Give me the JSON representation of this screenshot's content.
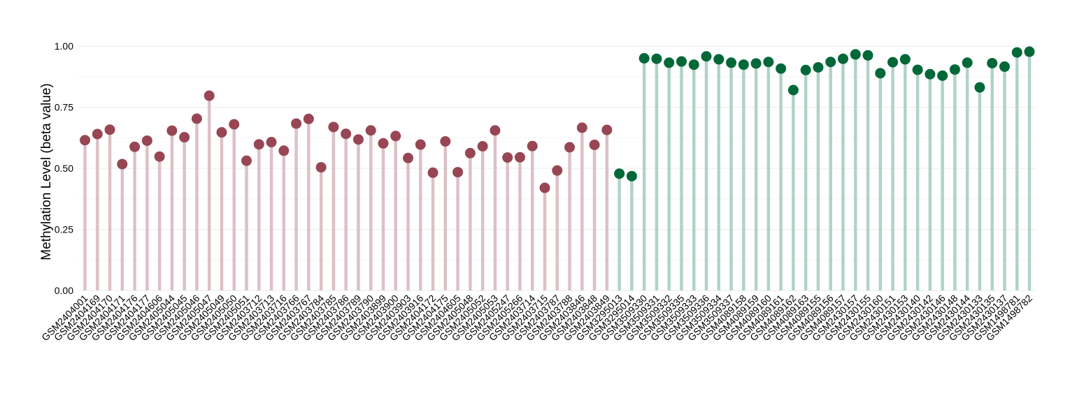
{
  "chart_data": {
    "type": "lollipop",
    "title": "",
    "xlabel": "",
    "ylabel": "Methylation Level (beta value)",
    "ylim": [
      0,
      1
    ],
    "yticks": [
      "0.00",
      "0.25",
      "0.50",
      "0.75",
      "1.00"
    ],
    "grid": true,
    "colors": {
      "group1_point": "#984654",
      "group1_stem": "#dcc1c6",
      "group2_point": "#016838",
      "group2_stem": "#b1d3c7"
    },
    "categories": [
      "GSM2404001",
      "GSM2404169",
      "GSM2404170",
      "GSM2404171",
      "GSM2404176",
      "GSM2404177",
      "GSM2404606",
      "GSM2405044",
      "GSM2405045",
      "GSM2405046",
      "GSM2405047",
      "GSM2405049",
      "GSM2405050",
      "GSM2405051",
      "GSM2403712",
      "GSM2403713",
      "GSM2403716",
      "GSM2403766",
      "GSM2403767",
      "GSM2403784",
      "GSM2403785",
      "GSM2403786",
      "GSM2403789",
      "GSM2403790",
      "GSM2403899",
      "GSM2403900",
      "GSM2403903",
      "GSM2403916",
      "GSM2404172",
      "GSM2404175",
      "GSM2404605",
      "GSM2405048",
      "GSM2405052",
      "GSM2405053",
      "GSM2405247",
      "GSM2405266",
      "GSM2403714",
      "GSM2403715",
      "GSM2403787",
      "GSM2403788",
      "GSM2403846",
      "GSM2403848",
      "GSM2403849",
      "GSM3295013",
      "GSM3295014",
      "GSM3509330",
      "GSM3509331",
      "GSM3509332",
      "GSM3509335",
      "GSM3509333",
      "GSM3509336",
      "GSM3509334",
      "GSM3509337",
      "GSM4089158",
      "GSM4089159",
      "GSM4089160",
      "GSM4089161",
      "GSM4089162",
      "GSM4089163",
      "GSM4089155",
      "GSM4089156",
      "GSM4089157",
      "GSM2430157",
      "GSM2430155",
      "GSM2430160",
      "GSM2430151",
      "GSM2430153",
      "GSM2430140",
      "GSM2430142",
      "GSM2430146",
      "GSM2430148",
      "GSM2430144",
      "GSM2430133",
      "GSM2430135",
      "GSM2430137",
      "GSM1498781",
      "GSM1498782"
    ],
    "values": [
      0.615,
      0.64,
      0.658,
      0.517,
      0.588,
      0.613,
      0.548,
      0.654,
      0.627,
      0.703,
      0.797,
      0.647,
      0.68,
      0.531,
      0.598,
      0.607,
      0.572,
      0.683,
      0.702,
      0.504,
      0.669,
      0.641,
      0.618,
      0.655,
      0.602,
      0.632,
      0.542,
      0.597,
      0.482,
      0.61,
      0.484,
      0.562,
      0.59,
      0.655,
      0.544,
      0.545,
      0.591,
      0.42,
      0.491,
      0.586,
      0.666,
      0.596,
      0.657,
      0.478,
      0.468,
      0.95,
      0.948,
      0.932,
      0.937,
      0.924,
      0.958,
      0.946,
      0.932,
      0.924,
      0.929,
      0.935,
      0.908,
      0.82,
      0.902,
      0.913,
      0.935,
      0.948,
      0.966,
      0.962,
      0.889,
      0.934,
      0.946,
      0.903,
      0.885,
      0.879,
      0.904,
      0.932,
      0.831,
      0.93,
      0.916,
      0.974,
      0.977
    ],
    "groups": [
      1,
      1,
      1,
      1,
      1,
      1,
      1,
      1,
      1,
      1,
      1,
      1,
      1,
      1,
      1,
      1,
      1,
      1,
      1,
      1,
      1,
      1,
      1,
      1,
      1,
      1,
      1,
      1,
      1,
      1,
      1,
      1,
      1,
      1,
      1,
      1,
      1,
      1,
      1,
      1,
      1,
      1,
      1,
      2,
      2,
      2,
      2,
      2,
      2,
      2,
      2,
      2,
      2,
      2,
      2,
      2,
      2,
      2,
      2,
      2,
      2,
      2,
      2,
      2,
      2,
      2,
      2,
      2,
      2,
      2,
      2,
      2,
      2,
      2,
      2,
      2,
      2
    ]
  }
}
